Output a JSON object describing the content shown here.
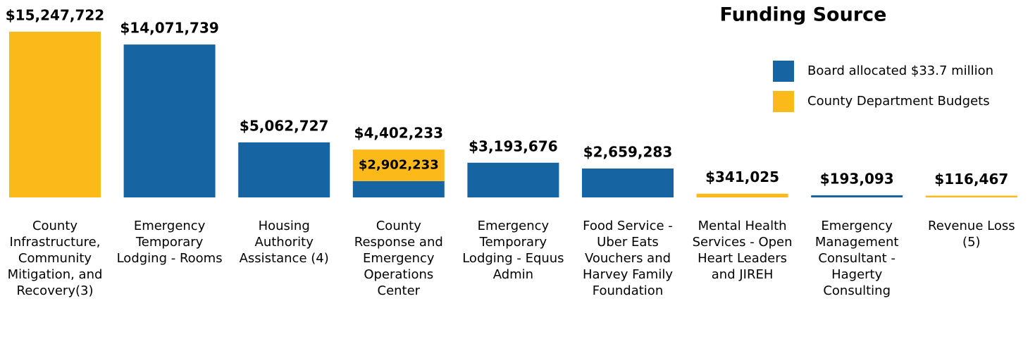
{
  "chart_data": {
    "type": "stacked_bar",
    "title": "Funding Source",
    "categories": [
      "County Infrastructure, Community Mitigation, and Recovery(3)",
      "Emergency Temporary Lodging - Rooms",
      "Housing Authority Assistance (4)",
      "County Response and Emergency Operations Center",
      "Emergency Temporary Lodging - Equus Admin",
      "Food Service - Uber Eats Vouchers and Harvey Family Foundation",
      "Mental Health Services - Open Heart Leaders and JIREH",
      "Emergency Management Consultant - Hagerty Consulting",
      "Revenue Loss (5)"
    ],
    "total_labels": [
      "$15,247,722",
      "$14,071,739",
      "$5,062,727",
      "$4,402,233",
      "$3,193,676",
      "$2,659,283",
      "$341,025",
      "$193,093",
      "$116,467"
    ],
    "series": [
      {
        "name": "Board allocated $33.7 million",
        "color": "#1764a3",
        "values": [
          null,
          14071739,
          5062727,
          1500000,
          3193676,
          2659283,
          null,
          193093,
          null
        ]
      },
      {
        "name": "County Department Budgets",
        "color": "#fbb91a",
        "values": [
          15247722,
          null,
          null,
          2902233,
          null,
          null,
          341025,
          null,
          116467
        ],
        "value_labels": [
          null,
          null,
          null,
          "$2,902,233",
          null,
          null,
          null,
          null,
          null
        ]
      }
    ]
  }
}
